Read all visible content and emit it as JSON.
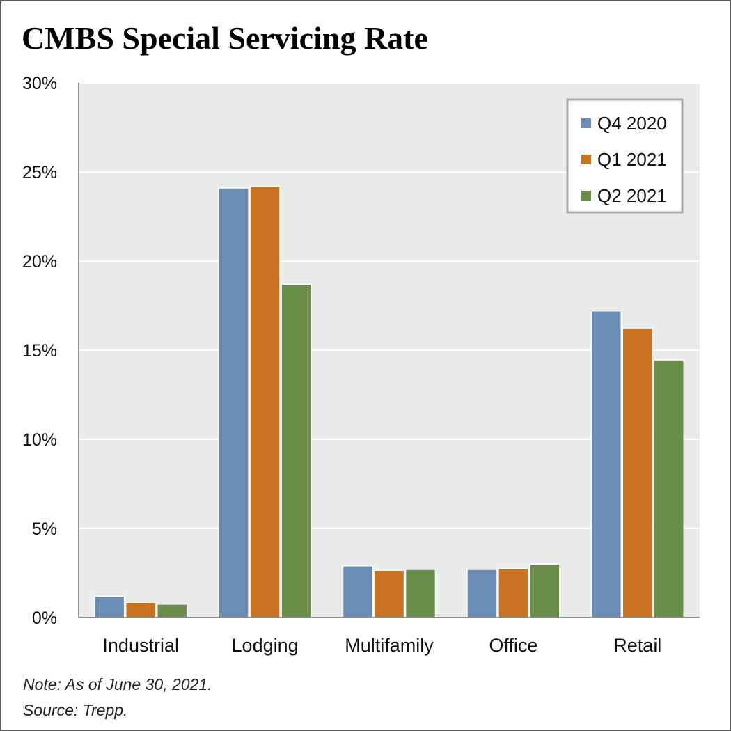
{
  "title": "CMBS Special Servicing Rate",
  "notes": {
    "note": "Note: As of June 30, 2021.",
    "source": "Source: Trepp."
  },
  "colors": {
    "plot_background": "#e9eaea",
    "gridline": "#ffffff",
    "axis": "#8c8c8c"
  },
  "chart_data": {
    "type": "bar",
    "title": "CMBS Special Servicing Rate",
    "xlabel": "",
    "ylabel": "",
    "categories": [
      "Industrial",
      "Lodging",
      "Multifamily",
      "Office",
      "Retail"
    ],
    "ylim": [
      0,
      30
    ],
    "yticks": [
      0,
      5,
      10,
      15,
      20,
      25,
      30
    ],
    "ytick_labels": [
      "0%",
      "5%",
      "10%",
      "15%",
      "20%",
      "25%",
      "30%"
    ],
    "grid": true,
    "legend_position": "top-right",
    "series": [
      {
        "name": "Q4 2020",
        "color": "#6b8cb4",
        "values": [
          1.2,
          24.1,
          2.9,
          2.7,
          17.2
        ]
      },
      {
        "name": "Q1 2021",
        "color": "#c8711e",
        "values": [
          0.85,
          24.2,
          2.65,
          2.75,
          16.25
        ]
      },
      {
        "name": "Q2 2021",
        "color": "#6a8e4a",
        "values": [
          0.75,
          18.7,
          2.7,
          3.0,
          14.45
        ]
      }
    ]
  }
}
